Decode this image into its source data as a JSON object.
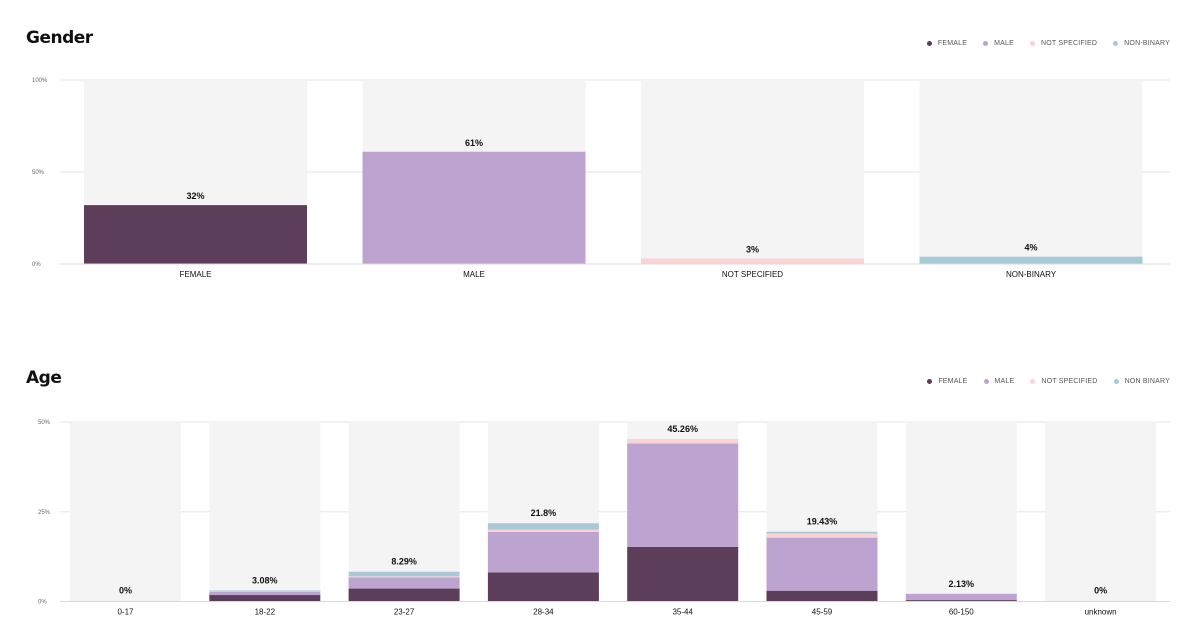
{
  "colors": {
    "female": "#5c3d5a",
    "male": "#bca3d0",
    "not_specified": "#fbd3d7",
    "non_binary": "#a9c9d6",
    "track": "#f4f4f4",
    "grid": "#e6e6e6"
  },
  "gender": {
    "title": "Gender",
    "legend": [
      {
        "label": "FEMALE",
        "color": "#5c3d5a"
      },
      {
        "label": "MALE",
        "color": "#bca3d0"
      },
      {
        "label": "NOT SPECIFIED",
        "color": "#fbd3d7"
      },
      {
        "label": "NON-BINARY",
        "color": "#a9c9d6"
      }
    ]
  },
  "age": {
    "title": "Age",
    "legend": [
      {
        "label": "FEMALE",
        "color": "#5c3d5a"
      },
      {
        "label": "MALE",
        "color": "#bca3d0"
      },
      {
        "label": "NOT SPECIFIED",
        "color": "#fbd3d7"
      },
      {
        "label": "NON BINARY",
        "color": "#a9c9d6"
      }
    ]
  },
  "chart_data": [
    {
      "type": "bar",
      "title": "Gender",
      "categories": [
        "FEMALE",
        "MALE",
        "NOT SPECIFIED",
        "NON-BINARY"
      ],
      "values": [
        32,
        61,
        3,
        4
      ],
      "value_labels": [
        "32%",
        "61%",
        "3%",
        "4%"
      ],
      "colors": [
        "#5c3d5a",
        "#bca3d0",
        "#fbd3d7",
        "#a9c9d6"
      ],
      "ylim": [
        0,
        100
      ],
      "yticks": [
        0,
        50,
        100
      ],
      "ytick_labels": [
        "0%",
        "50%",
        "100%"
      ],
      "grid": true,
      "legend_position": "top-right"
    },
    {
      "type": "bar",
      "stacked": true,
      "title": "Age",
      "categories": [
        "0-17",
        "18-22",
        "23-27",
        "28-34",
        "35-44",
        "45-59",
        "60-150",
        "unknown"
      ],
      "series": [
        {
          "name": "FEMALE",
          "color": "#5c3d5a",
          "values": [
            0,
            1.8,
            3.6,
            8.1,
            15.2,
            3.0,
            0.4,
            0
          ]
        },
        {
          "name": "MALE",
          "color": "#bca3d0",
          "values": [
            0,
            0.9,
            3.1,
            11.3,
            28.8,
            14.8,
            1.73,
            0
          ]
        },
        {
          "name": "NOT SPECIFIED",
          "color": "#fbd3d7",
          "values": [
            0,
            0.1,
            0.3,
            0.6,
            1.26,
            1.13,
            0,
            0
          ]
        },
        {
          "name": "NON BINARY",
          "color": "#a9c9d6",
          "values": [
            0,
            0.28,
            1.29,
            1.8,
            0,
            0.5,
            0,
            0
          ]
        }
      ],
      "totals": [
        0,
        3.08,
        8.29,
        21.8,
        45.26,
        19.43,
        2.13,
        0
      ],
      "total_labels": [
        "0%",
        "3.08%",
        "8.29%",
        "21.8%",
        "45.26%",
        "19.43%",
        "2.13%",
        "0%"
      ],
      "ylim": [
        0,
        50
      ],
      "yticks": [
        0,
        25,
        50
      ],
      "ytick_labels": [
        "0%",
        "25%",
        "50%"
      ],
      "grid": true,
      "legend_position": "top-right"
    }
  ]
}
